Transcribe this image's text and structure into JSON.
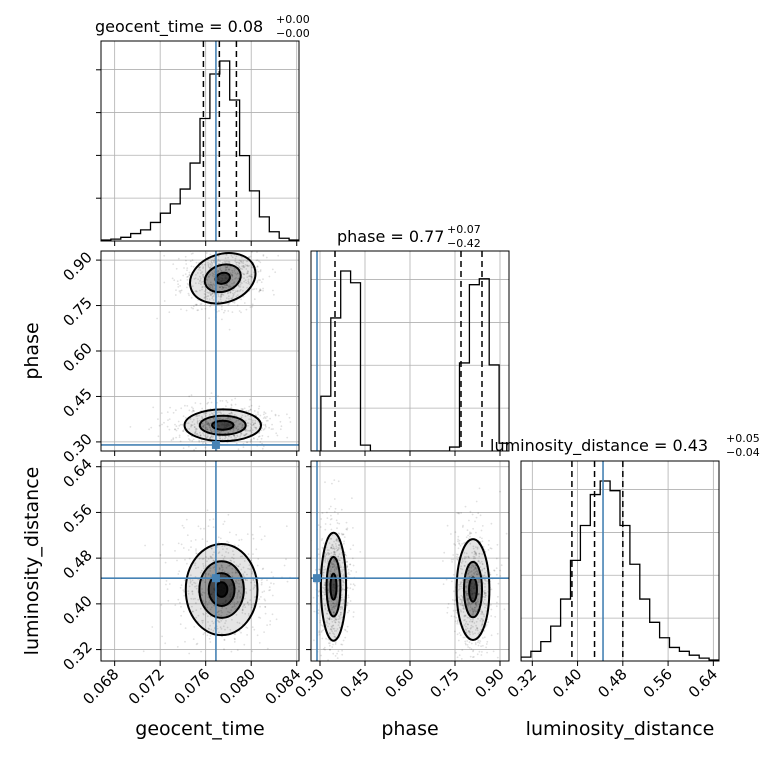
{
  "chart_data": {
    "type": "corner",
    "params": [
      {
        "name": "geocent_time",
        "xlabel": "geocent_time",
        "ylabel": "",
        "range": [
          0.0668,
          0.0842
        ],
        "ticks": [
          0.068,
          0.072,
          0.076,
          0.08,
          0.084
        ],
        "tick_labels": [
          "0.068",
          "0.072",
          "0.076",
          "0.080",
          "0.084"
        ],
        "title": "geocent_time = 0.08",
        "title_plus": "+0.00",
        "title_minus": "−0.00",
        "quantiles": [
          0.0758,
          0.0772,
          0.0787
        ],
        "truth": 0.0769,
        "hist_edges_start": 0.0668,
        "hist_bin_width": 0.00087,
        "hist_counts": [
          0.5,
          1,
          2,
          4,
          6,
          10,
          15,
          20,
          28,
          42,
          66,
          90,
          97,
          76,
          46,
          27,
          13,
          5,
          1.5,
          0.5
        ]
      },
      {
        "name": "phase",
        "xlabel": "phase",
        "ylabel": "phase",
        "range": [
          0.27,
          0.93
        ],
        "ticks": [
          0.3,
          0.45,
          0.6,
          0.75,
          0.9
        ],
        "tick_labels": [
          "0.30",
          "0.45",
          "0.60",
          "0.75",
          "0.90"
        ],
        "title": "phase = 0.77",
        "title_plus": "+0.07",
        "title_minus": "−0.42",
        "quantiles": [
          0.35,
          0.77,
          0.84
        ],
        "truth": 0.29,
        "hist_edges_start": 0.27,
        "hist_bin_width": 0.033,
        "hist_counts": [
          0,
          28,
          68,
          92,
          86,
          3,
          0,
          0,
          0,
          0,
          0,
          0,
          0,
          0,
          2,
          45,
          85,
          88,
          44,
          4
        ]
      },
      {
        "name": "luminosity_distance",
        "xlabel": "luminosity_distance",
        "ylabel": "luminosity_distance",
        "range": [
          0.3,
          0.65
        ],
        "ticks": [
          0.32,
          0.4,
          0.48,
          0.56,
          0.64
        ],
        "tick_labels": [
          "0.32",
          "0.40",
          "0.48",
          "0.56",
          "0.64"
        ],
        "title": "luminosity_distance = 0.43",
        "title_plus": "+0.05",
        "title_minus": "−0.04",
        "quantiles": [
          0.39,
          0.43,
          0.48
        ],
        "truth": 0.445,
        "hist_edges_start": 0.3,
        "hist_bin_width": 0.0175,
        "hist_counts": [
          2,
          5,
          10,
          18,
          32,
          52,
          70,
          86,
          93,
          88,
          70,
          50,
          32,
          20,
          12,
          7,
          5,
          3,
          1.5,
          0.5
        ]
      }
    ],
    "pairs": [
      {
        "x": 0,
        "y": 1,
        "modes": [
          {
            "cx": 0.0775,
            "cy": 0.84,
            "sx": 0.0014,
            "sy": 0.038,
            "rot": -18,
            "levels": [
              1,
              0.55,
              0.22
            ]
          },
          {
            "cx": 0.0775,
            "cy": 0.355,
            "sx": 0.0016,
            "sy": 0.025,
            "rot": 0,
            "levels": [
              1,
              0.6,
              0.28
            ]
          }
        ]
      },
      {
        "x": 0,
        "y": 2,
        "modes": [
          {
            "cx": 0.0774,
            "cy": 0.425,
            "sx": 0.0015,
            "sy": 0.038,
            "rot": 0,
            "levels": [
              1,
              0.62,
              0.36,
              0.16
            ]
          }
        ]
      },
      {
        "x": 1,
        "y": 2,
        "modes": [
          {
            "cx": 0.345,
            "cy": 0.43,
            "sx": 0.02,
            "sy": 0.045,
            "rot": 0,
            "levels": [
              1,
              0.55,
              0.24
            ]
          },
          {
            "cx": 0.81,
            "cy": 0.425,
            "sx": 0.026,
            "sy": 0.042,
            "rot": 0,
            "levels": [
              1,
              0.55,
              0.24
            ]
          }
        ]
      }
    ],
    "grid": true
  }
}
